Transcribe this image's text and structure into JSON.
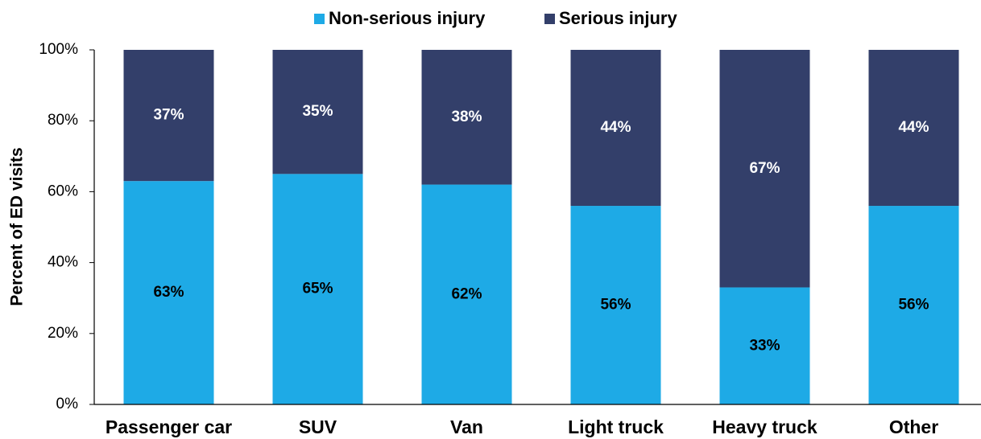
{
  "chart_data": {
    "type": "stacked_bar",
    "y_axis_label": "Percent of ED visits",
    "categories": [
      "Passenger car",
      "SUV",
      "Van",
      "Light truck",
      "Heavy truck",
      "Other"
    ],
    "series": [
      {
        "name": "Non-serious injury",
        "color": "#1eaae6",
        "values": [
          63,
          65,
          62,
          56,
          33,
          56
        ],
        "value_labels": [
          "63%",
          "65%",
          "62%",
          "56%",
          "33%",
          "56%"
        ]
      },
      {
        "name": "Serious injury",
        "color": "#333f6a",
        "values": [
          37,
          35,
          38,
          44,
          67,
          44
        ],
        "value_labels": [
          "37%",
          "35%",
          "38%",
          "44%",
          "67%",
          "44%"
        ]
      }
    ],
    "ylim": [
      0,
      100
    ],
    "yticks": [
      {
        "value": 0,
        "label": "0%"
      },
      {
        "value": 20,
        "label": "20%"
      },
      {
        "value": 40,
        "label": "40%"
      },
      {
        "value": 60,
        "label": "60%"
      },
      {
        "value": 80,
        "label": "80%"
      },
      {
        "value": 100,
        "label": "100%"
      }
    ],
    "legend": "top"
  }
}
